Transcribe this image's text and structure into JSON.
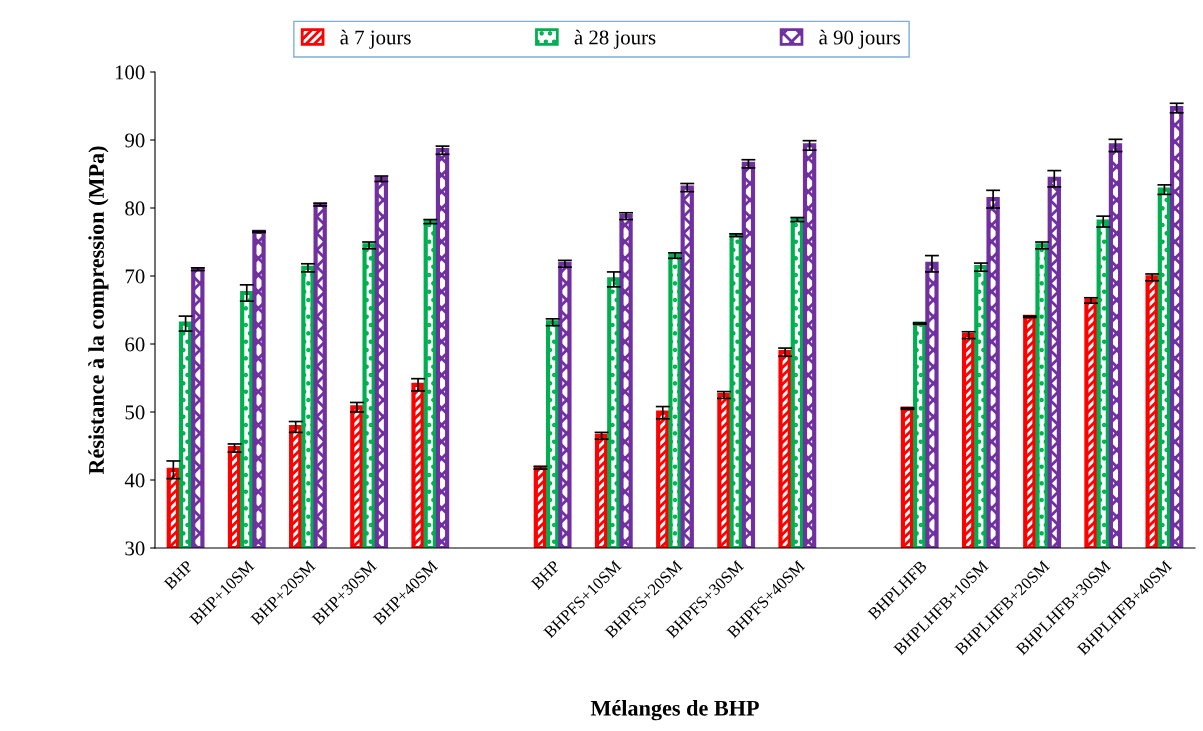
{
  "chart_data": {
    "type": "bar",
    "xlabel": "Mélanges de BHP",
    "ylabel": "Résistance à la compression (MPa)",
    "categories": [
      "BHP",
      "BHP+10SM",
      "BHP+20SM",
      "BHP+30SM",
      "BHP+40SM",
      null,
      "BHP",
      "BHPFS+10SM",
      "BHPFS+20SM",
      "BHPFS+30SM",
      "BHPFS+40SM",
      null,
      "BHPLHFB",
      "BHPLHFB+10SM",
      "BHPLHFB+20SM",
      "BHPLHFB+30SM",
      "BHPLHFB+40SM"
    ],
    "series": [
      {
        "name": "à 7 jours",
        "color": "#ff0000",
        "values": [
          41.5,
          44.7,
          47.8,
          50.7,
          54.0,
          null,
          41.8,
          46.5,
          49.9,
          52.5,
          58.8,
          null,
          50.5,
          61.3,
          64.0,
          66.4,
          69.8
        ],
        "errors": [
          1.3,
          0.6,
          0.8,
          0.7,
          0.9,
          null,
          0.2,
          0.5,
          0.9,
          0.5,
          0.6,
          null,
          0.1,
          0.5,
          0.1,
          0.4,
          0.5
        ]
      },
      {
        "name": "à 28 jours",
        "color": "#00b050",
        "values": [
          63.0,
          67.5,
          71.2,
          74.5,
          78.0,
          null,
          63.2,
          69.5,
          73.0,
          76.0,
          78.3,
          null,
          63.0,
          71.3,
          74.5,
          78.0,
          82.7
        ],
        "errors": [
          1.1,
          1.2,
          0.6,
          0.5,
          0.3,
          null,
          0.5,
          1.1,
          0.4,
          0.2,
          0.3,
          null,
          0.1,
          0.6,
          0.5,
          0.8,
          0.7
        ]
      },
      {
        "name": "à 90 jours",
        "color": "#7030a0",
        "values": [
          71.0,
          76.5,
          80.5,
          84.3,
          88.5,
          null,
          71.8,
          78.8,
          83.0,
          86.5,
          89.2,
          null,
          71.8,
          81.3,
          84.3,
          89.2,
          94.7
        ],
        "errors": [
          0.2,
          0.1,
          0.2,
          0.4,
          0.6,
          null,
          0.5,
          0.5,
          0.6,
          0.6,
          0.7,
          null,
          1.2,
          1.3,
          1.2,
          0.9,
          0.7
        ]
      }
    ],
    "ylim": [
      30,
      100
    ],
    "yticks": [
      30,
      40,
      50,
      60,
      70,
      80,
      90,
      100
    ],
    "grid": false,
    "legend": "top"
  }
}
